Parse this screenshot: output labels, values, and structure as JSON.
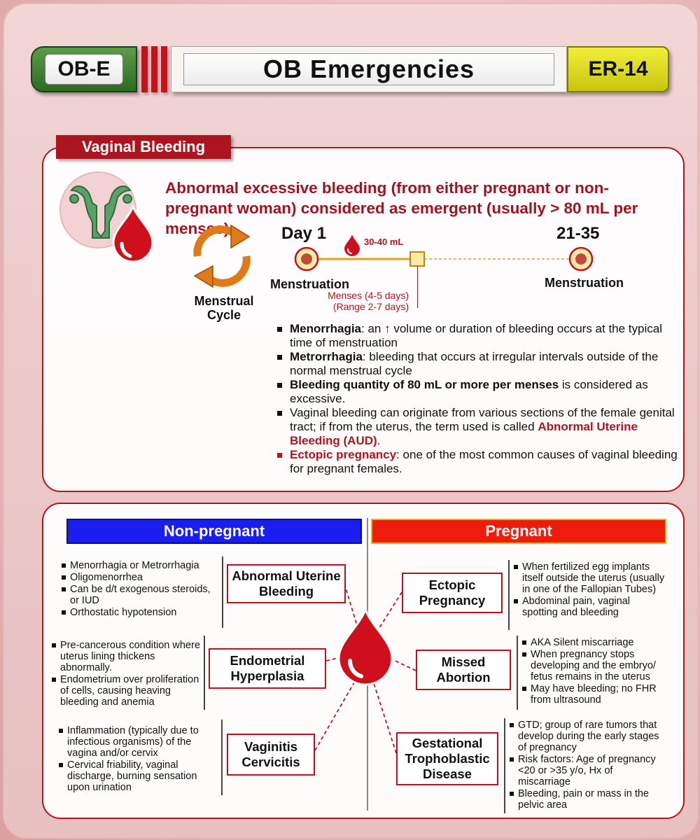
{
  "header": {
    "left_code": "OB-E",
    "title": "OB Emergencies",
    "right_code": "ER-14"
  },
  "section": {
    "tag": "Vaginal Bleeding",
    "intro": "Abnormal excessive bleeding (from either pregnant or non-pregnant woman) considered as emergent (usually > 80 mL per menses)."
  },
  "cycle": {
    "label_line1": "Menstrual",
    "label_line2": "Cycle",
    "day_start": "Day 1",
    "day_end": "21-35",
    "volume": "30-40 mL",
    "start_label": "Menstruation",
    "end_label": "Menstruation",
    "menses_note1": "Menses (4-5 days)",
    "menses_note2": "(Range 2-7 days)"
  },
  "bullets": [
    {
      "term": "Menorrhagia",
      "text": ": an ↑ volume or duration of bleeding occurs at the typical time of menstruation"
    },
    {
      "term": "Metrorrhagia",
      "text": ": bleeding that occurs at irregular intervals outside of the normal menstrual cycle"
    },
    {
      "term": "Bleeding quantity of 80 mL or more per menses",
      "text": " is considered as excessive."
    },
    {
      "pre": "Vaginal bleeding can originate from various sections of the female genital tract; if from the uterus, the term used is called ",
      "term": "Abnormal Uterine Bleeding (AUD)",
      "post": "."
    },
    {
      "term": "Ectopic pregnancy",
      "text": ": one of the most common causes of vaginal bleeding for pregnant females."
    }
  ],
  "columns": {
    "non_pregnant": "Non-pregnant",
    "pregnant": "Pregnant"
  },
  "non_pregnant": [
    {
      "name": "Abnormal Uterine Bleeding",
      "points": [
        "Menorrhagia or Metrorrhagia",
        "Oligomenorrhea",
        "Can be d/t exogenous steroids, or IUD",
        "Orthostatic hypotension"
      ]
    },
    {
      "name": "Endometrial Hyperplasia",
      "points": [
        "Pre-cancerous condition where uterus lining thickens abnormally.",
        "Endometrium over proliferation of cells, causing heaving bleeding and anemia"
      ]
    },
    {
      "name": "Vaginitis Cervicitis",
      "points": [
        "Inflammation (typically due to infectious organisms) of the vagina and/or cervix",
        "Cervical friability, vaginal discharge, burning sensation upon urination"
      ]
    }
  ],
  "pregnant": [
    {
      "name": "Ectopic Pregnancy",
      "points": [
        "When fertilized egg implants itself outside the uterus (usually in one of the Fallopian Tubes)",
        "Abdominal pain, vaginal spotting and bleeding"
      ]
    },
    {
      "name": "Missed Abortion",
      "points": [
        "AKA Silent miscarriage",
        "When pregnancy stops developing and the embryo/ fetus remains in the uterus",
        "May have bleeding; no FHR from ultrasound"
      ]
    },
    {
      "name": "Gestational Trophoblastic Disease",
      "points": [
        "GTD; group of rare tumors that develop during the early stages of pregnancy",
        "Risk factors: Age of pregnancy <20 or >35 y/o, Hx of miscarriage",
        "Bleeding, pain or mass in the pelvic area"
      ]
    }
  ],
  "colors": {
    "accent_red": "#b3121f",
    "blood": "#d0101c",
    "cycle_orange": "#e07a18",
    "uterus_green": "#5aa06a"
  },
  "icons": [
    "uterus-icon",
    "blood-drop-icon",
    "cycle-arrows-icon"
  ]
}
